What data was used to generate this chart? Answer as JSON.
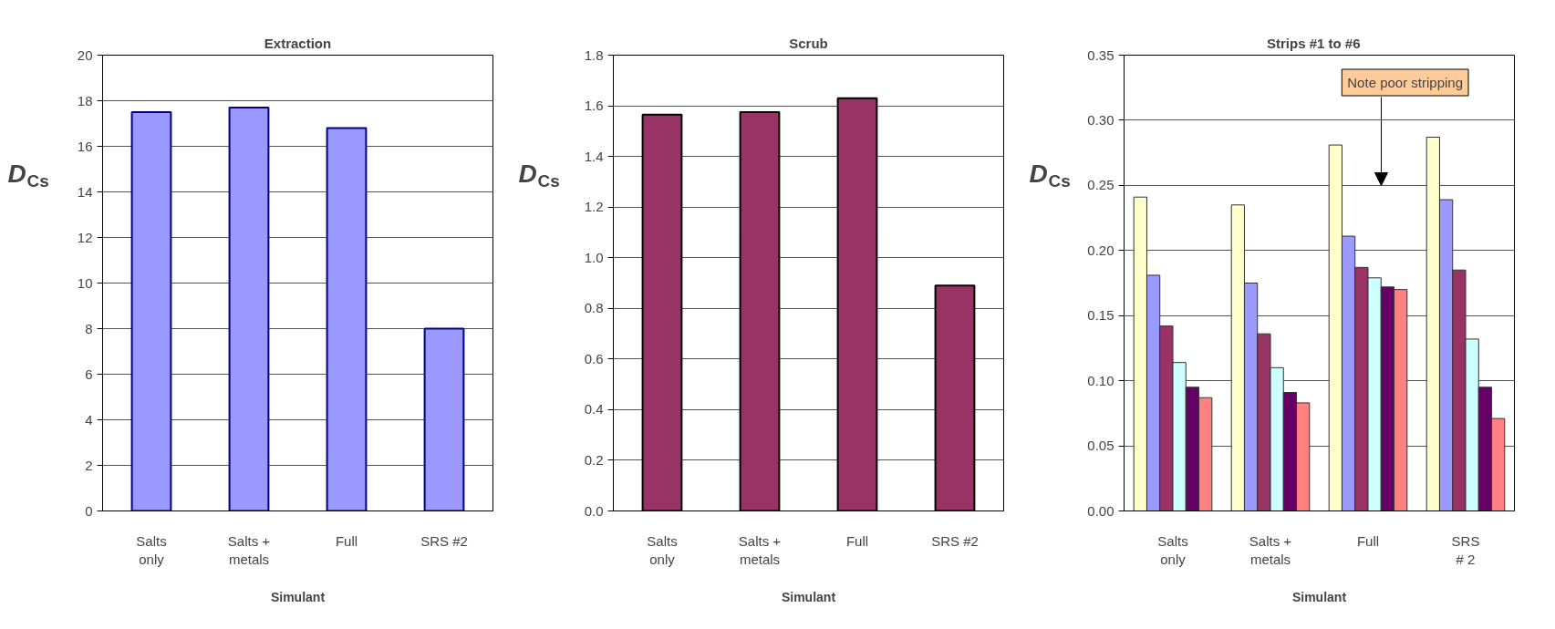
{
  "chart_data": [
    {
      "type": "bar",
      "title": "Extraction",
      "xlabel": "Simulant",
      "ylabel": "D$_{Cs}$",
      "categories": [
        "Salts\nonly",
        "Salts +\nmetals",
        "Full",
        "SRS #2"
      ],
      "series": [
        {
          "color": "#9999ff",
          "values": [
            17.5,
            17.7,
            16.8,
            8.0
          ]
        }
      ],
      "ylim": [
        0,
        20
      ],
      "yticks": [
        0,
        2,
        4,
        6,
        8,
        10,
        12,
        14,
        16,
        18,
        20
      ],
      "grid": "y"
    },
    {
      "type": "bar",
      "title": "Scrub",
      "xlabel": "Simulant",
      "ylabel": "D$_{Cs}$",
      "categories": [
        "Salts\nonly",
        "Salts +\nmetals",
        "Full",
        "SRS #2"
      ],
      "series": [
        {
          "color": "#993366",
          "values": [
            1.565,
            1.575,
            1.63,
            0.89
          ]
        }
      ],
      "ylim": [
        0,
        1.8
      ],
      "yticks": [
        {
          "value": 0,
          "label": "0.0"
        },
        {
          "value": 0.2,
          "label": "0.2"
        },
        {
          "value": 0.4,
          "label": "0.4"
        },
        {
          "value": 0.6,
          "label": "0.6"
        },
        {
          "value": 0.8,
          "label": "0.8"
        },
        {
          "value": 1.0,
          "label": "1.0"
        },
        {
          "value": 1.2,
          "label": "1.2"
        },
        {
          "value": 1.4,
          "label": "1.4"
        },
        {
          "value": 1.6,
          "label": "1.6"
        },
        {
          "value": 1.8,
          "label": "1.8"
        }
      ],
      "grid": "y"
    },
    {
      "type": "bar",
      "title": "Strips  #1  to  #6",
      "xlabel": "Simulant",
      "ylabel": "D$_{Cs}$",
      "categories": [
        "Salts\nonly",
        "Salts +\nmetals",
        "Full",
        "SRS\n# 2"
      ],
      "series": [
        {
          "color": "#ffffcc",
          "values": [
            0.241,
            0.235,
            0.281,
            0.287
          ]
        },
        {
          "color": "#9999ff",
          "values": [
            0.181,
            0.175,
            0.211,
            0.239
          ]
        },
        {
          "color": "#993366",
          "values": [
            0.142,
            0.136,
            0.187,
            0.185
          ]
        },
        {
          "color": "#ccffff",
          "values": [
            0.114,
            0.11,
            0.179,
            0.132
          ]
        },
        {
          "color": "#660066",
          "values": [
            0.095,
            0.091,
            0.172,
            0.095
          ]
        },
        {
          "color": "#ff8080",
          "values": [
            0.087,
            0.083,
            0.17,
            0.071
          ]
        }
      ],
      "ylim": [
        0,
        0.35
      ],
      "yticks": [
        {
          "value": 0,
          "label": "0.00"
        },
        {
          "value": 0.05,
          "label": "0.05"
        },
        {
          "value": 0.1,
          "label": "0.10"
        },
        {
          "value": 0.15,
          "label": "0.15"
        },
        {
          "value": 0.2,
          "label": "0.20"
        },
        {
          "value": 0.25,
          "label": "0.25"
        },
        {
          "value": 0.3,
          "label": "0.30"
        },
        {
          "value": 0.35,
          "label": "0.35"
        }
      ],
      "grid": "y",
      "annotations": [
        "Note poor stripping"
      ]
    }
  ]
}
